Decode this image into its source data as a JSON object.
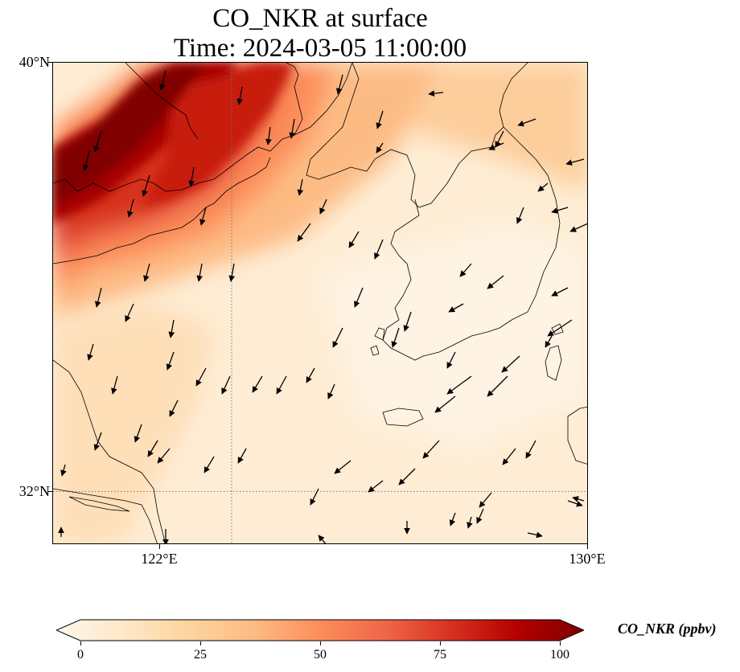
{
  "title": {
    "line1": "CO_NKR at surface",
    "line2": "Time: 2024-03-05 11:00:00"
  },
  "map": {
    "lon_range": [
      118,
      130
    ],
    "lat_range": [
      31,
      40
    ],
    "gridlines": {
      "lon": 122,
      "lat": 32,
      "style": "dotted"
    },
    "lat_tick_labels": [
      "40°N",
      "32°N"
    ],
    "lon_tick_labels": [
      "122°E",
      "130°E"
    ],
    "field_colormap": "OrRd",
    "coastline_color": "#000000",
    "vector_field": "wind arrows, predominantly from north/northeast toward south/southwest"
  },
  "colorbar": {
    "label": "CO_NKR (ppbv)",
    "ticks": [
      "0",
      "25",
      "50",
      "75",
      "100"
    ],
    "min": 0,
    "max": 100,
    "extend": "both",
    "colors": [
      "#fff7ec",
      "#fee8c8",
      "#fdd49e",
      "#fdbb84",
      "#fc8d59",
      "#ef6548",
      "#d7301f",
      "#b30000",
      "#7f0000"
    ]
  }
}
